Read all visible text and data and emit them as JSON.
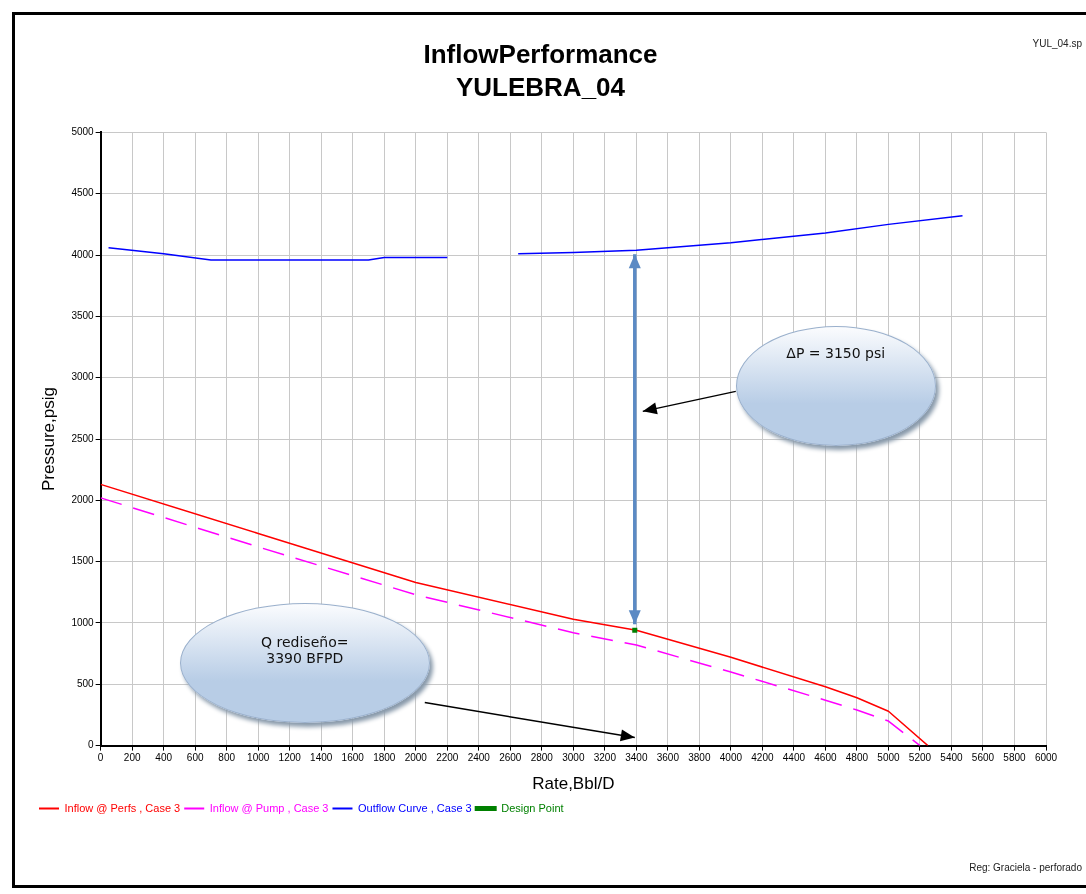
{
  "chart_data": {
    "type": "line",
    "title": "InflowPerformance",
    "subtitle": "YULEBRA_04",
    "xlabel": "Rate,Bbl/D",
    "ylabel": "Pressure,psig",
    "xlim": [
      0,
      6000
    ],
    "xticks": [
      0,
      200,
      400,
      600,
      800,
      1000,
      1200,
      1400,
      1600,
      1800,
      2000,
      2200,
      2400,
      2600,
      2800,
      3000,
      3200,
      3400,
      3600,
      3800,
      4000,
      4200,
      4400,
      4600,
      4800,
      5000,
      5200,
      5400,
      5600,
      5800,
      6000
    ],
    "ylim": [
      0,
      5000
    ],
    "yticks": [
      0,
      500,
      1000,
      1500,
      2000,
      2500,
      3000,
      3500,
      4000,
      4500,
      5000
    ],
    "grid": true,
    "legend": "bottom left",
    "marker": "none",
    "series": [
      {
        "name": "Inflow @ Perfs , Case 3",
        "color": "#ff0000",
        "x": [
          0,
          1000,
          2000,
          3000,
          3400,
          4000,
          4600,
          4800,
          5000,
          5250
        ],
        "values": [
          2130,
          1730,
          1330,
          1030,
          940,
          720,
          480,
          390,
          280,
          0
        ]
      },
      {
        "name": "Inflow @ Pump , Case 3",
        "color": "#ff00ff",
        "line_style": "dashed",
        "x": [
          0,
          1000,
          2000,
          3000,
          3400,
          4000,
          4600,
          4800,
          5000,
          5200
        ],
        "values": [
          2020,
          1620,
          1230,
          920,
          820,
          600,
          370,
          290,
          200,
          0
        ]
      },
      {
        "name": "Outflow Curve , Case 3",
        "color": "#0000ff",
        "x": [
          50,
          400,
          700,
          1700,
          1800,
          2200,
          2300,
          2650,
          3000,
          3400,
          4000,
          4600,
          5000,
          5470
        ],
        "values": [
          4060,
          4010,
          3960,
          3960,
          3980,
          3980,
          null,
          4010,
          4020,
          4040,
          4100,
          4180,
          4250,
          4320
        ]
      },
      {
        "name": "Design Point",
        "type": "scatter",
        "marker": "square",
        "color": "#008000",
        "x": [
          3390
        ],
        "values": [
          940
        ]
      }
    ],
    "annotations": [
      "ΔP = 3150 psi",
      "Q rediseño=\n3390 BFPD",
      "YUL_04.sp",
      "Reg: Graciela - perforado"
    ]
  }
}
